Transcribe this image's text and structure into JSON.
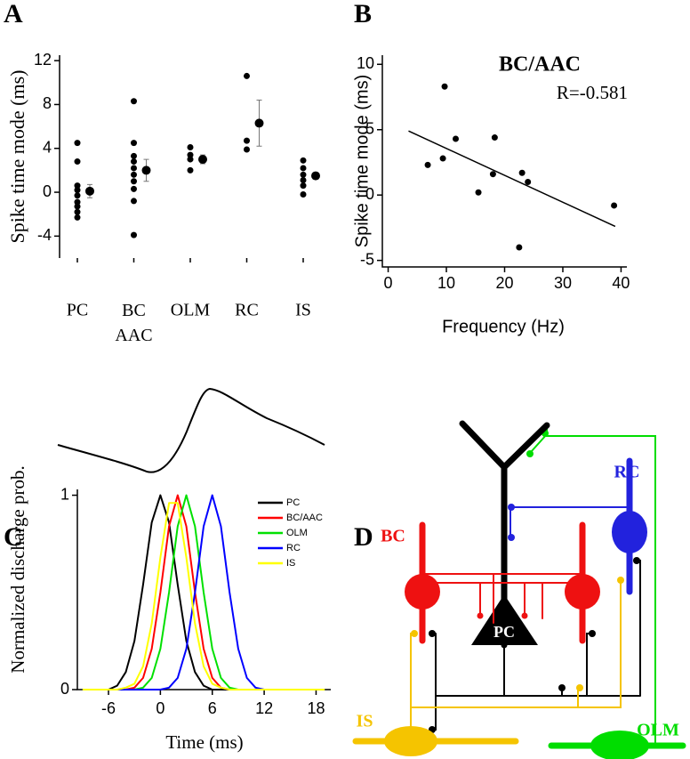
{
  "chart_data": [
    {
      "type": "strip",
      "panel_label": "A",
      "y_label": "Spike time mode (ms)",
      "categories": [
        "PC",
        "BC\nAAC",
        "OLM",
        "RC",
        "IS"
      ],
      "points": [
        [
          4.5,
          2.8,
          0.6,
          0.2,
          -0.3,
          -0.9,
          -1.3,
          -1.8,
          -2.3
        ],
        [
          8.3,
          4.5,
          3.3,
          2.8,
          2.2,
          1.6,
          1.0,
          0.3,
          -0.8,
          -3.9
        ],
        [
          4.1,
          3.4,
          3.0,
          2.0
        ],
        [
          10.6,
          4.7,
          3.9
        ],
        [
          2.9,
          2.2,
          1.6,
          1.1,
          0.6,
          -0.2
        ]
      ],
      "means": [
        0.1,
        2.0,
        3.0,
        6.3,
        1.5
      ],
      "errors": [
        0.6,
        1.0,
        0.4,
        2.1,
        0.3
      ],
      "color": "#000000",
      "ylim": [
        -6,
        12.5
      ],
      "yticks": [
        -4,
        0,
        4,
        8,
        12
      ]
    },
    {
      "type": "scatter",
      "panel_label": "B",
      "title": "BC/AAC",
      "annotation": "R=-0.581",
      "x_label": "Frequency (Hz)",
      "y_label": "Spike time mode (ms)",
      "x": [
        6.8,
        9.4,
        9.7,
        11.6,
        15.5,
        18.0,
        18.3,
        22.5,
        23.0,
        24.0,
        38.8
      ],
      "y": [
        2.3,
        2.8,
        8.3,
        4.3,
        0.2,
        1.6,
        4.4,
        -4.0,
        1.7,
        1.0,
        -0.8
      ],
      "fit": {
        "x": [
          3.5,
          39
        ],
        "y": [
          4.9,
          -2.4
        ]
      },
      "color": "#000000",
      "xlim": [
        -1,
        41
      ],
      "ylim": [
        -5.5,
        10.7
      ],
      "xticks": [
        0,
        10,
        20,
        30,
        40
      ],
      "yticks": [
        -5,
        0,
        5,
        10
      ]
    },
    {
      "type": "line",
      "panel_label": "C",
      "x_label": "Time (ms)",
      "y_label": "Normalized discharge prob.",
      "x": [
        -9,
        -8,
        -7,
        -6,
        -5,
        -4,
        -3,
        -2,
        -1,
        0,
        1,
        2,
        3,
        4,
        5,
        6,
        7,
        8,
        9,
        10,
        11,
        12,
        13,
        14,
        15,
        16,
        17,
        18,
        19
      ],
      "series": [
        {
          "name": "PC",
          "color": "#000000",
          "values": [
            0,
            0,
            0,
            0,
            0.02,
            0.09,
            0.25,
            0.54,
            0.86,
            1,
            0.86,
            0.54,
            0.25,
            0.09,
            0.02,
            0,
            0,
            0,
            0,
            0,
            0,
            0,
            0,
            0,
            0,
            0,
            0,
            0,
            0
          ]
        },
        {
          "name": "BC/AAC",
          "color": "#ff0000",
          "values": [
            0,
            0,
            0,
            0,
            0,
            0,
            0.01,
            0.06,
            0.21,
            0.5,
            0.84,
            1,
            0.84,
            0.5,
            0.21,
            0.06,
            0.01,
            0,
            0,
            0,
            0,
            0,
            0,
            0,
            0,
            0,
            0,
            0,
            0
          ]
        },
        {
          "name": "OLM",
          "color": "#00e000",
          "values": [
            0,
            0,
            0,
            0,
            0,
            0,
            0,
            0.01,
            0.06,
            0.21,
            0.5,
            0.84,
            1,
            0.84,
            0.5,
            0.21,
            0.06,
            0.01,
            0,
            0,
            0,
            0,
            0,
            0,
            0,
            0,
            0,
            0,
            0
          ]
        },
        {
          "name": "RC",
          "color": "#0000ff",
          "values": [
            0,
            0,
            0,
            0,
            0,
            0,
            0,
            0,
            0,
            0,
            0.01,
            0.06,
            0.21,
            0.5,
            0.84,
            1,
            0.84,
            0.5,
            0.21,
            0.06,
            0.01,
            0,
            0,
            0,
            0,
            0,
            0,
            0,
            0
          ]
        },
        {
          "name": "IS",
          "color": "#ffff00",
          "values": [
            0,
            0,
            0,
            0,
            0,
            0.01,
            0.03,
            0.12,
            0.34,
            0.68,
            0.96,
            0.96,
            0.68,
            0.34,
            0.12,
            0.03,
            0.01,
            0,
            0,
            0,
            0,
            0,
            0,
            0,
            0,
            0,
            0,
            0,
            0
          ]
        }
      ],
      "xlim": [
        -9.6,
        19.7
      ],
      "ylim": [
        0,
        1.03
      ],
      "xticks": [
        -6,
        0,
        6,
        12,
        18
      ],
      "yticks": [
        0,
        1
      ]
    }
  ],
  "diagram": {
    "panel_label": "D",
    "labels": {
      "pc": "PC",
      "bc": "BC",
      "rc": "RC",
      "is": "IS",
      "olm": "OLM"
    }
  }
}
